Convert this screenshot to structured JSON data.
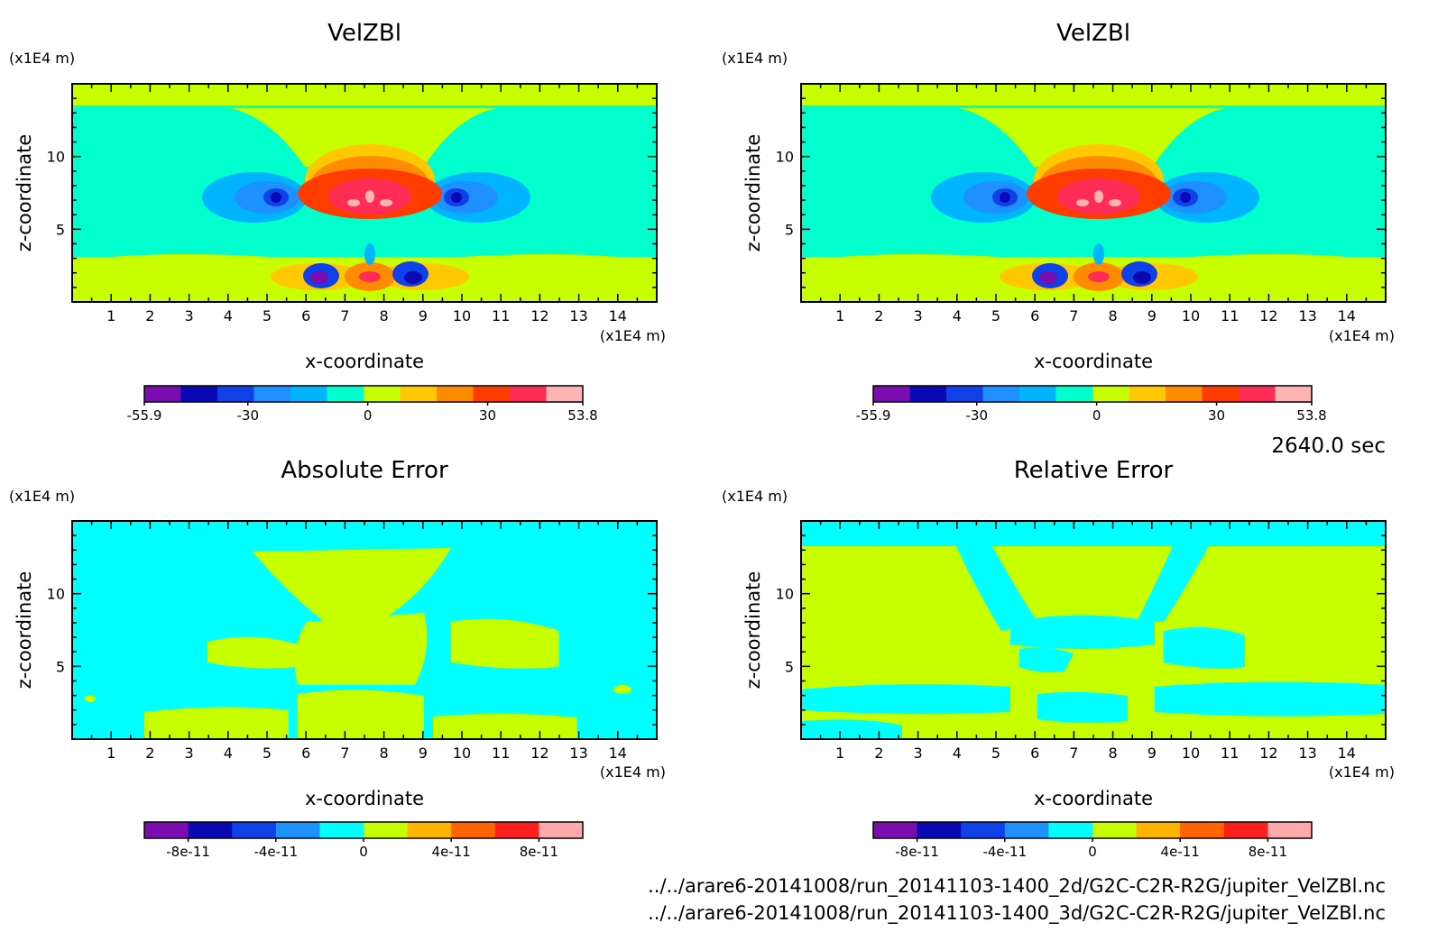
{
  "time_label": "2640.0 sec",
  "footer": {
    "line1": "../../arare6-20141008/run_20141103-1400_2d/G2C-C2R-R2G/jupiter_VelZBl.nc",
    "line2": "../../arare6-20141008/run_20141103-1400_3d/G2C-C2R-R2G/jupiter_VelZBl.nc"
  },
  "chart_data": [
    {
      "type": "heatmap",
      "title": "VelZBl",
      "xlabel": "x-coordinate",
      "ylabel": "z-coordinate",
      "x_unit": "(x1E4 m)",
      "y_unit": "(x1E4 m)",
      "xlim": [
        0,
        15
      ],
      "ylim": [
        0,
        15
      ],
      "xticks": [
        1,
        2,
        3,
        4,
        5,
        6,
        7,
        8,
        9,
        10,
        11,
        12,
        13,
        14
      ],
      "yticks": [
        5,
        10
      ],
      "colorbar": {
        "colors": [
          "#7b0cb0",
          "#0a0ab4",
          "#1040e8",
          "#1e90ff",
          "#00b4ff",
          "#00ffcc",
          "#c8ff00",
          "#ffc800",
          "#ff8c00",
          "#ff3c00",
          "#ff2d55",
          "#ffb4b4"
        ],
        "tick_labels": [
          "-55.9",
          "-30",
          "0",
          "30",
          "53.8"
        ],
        "tick_values": [
          -55.9,
          -30,
          0,
          30,
          53.8
        ],
        "range": [
          -55.9,
          53.8
        ]
      }
    },
    {
      "type": "heatmap",
      "title": "VelZBl",
      "xlabel": "x-coordinate",
      "ylabel": "z-coordinate",
      "x_unit": "(x1E4 m)",
      "y_unit": "(x1E4 m)",
      "xlim": [
        0,
        15
      ],
      "ylim": [
        0,
        15
      ],
      "xticks": [
        1,
        2,
        3,
        4,
        5,
        6,
        7,
        8,
        9,
        10,
        11,
        12,
        13,
        14
      ],
      "yticks": [
        5,
        10
      ],
      "colorbar": {
        "colors": [
          "#7b0cb0",
          "#0a0ab4",
          "#1040e8",
          "#1e90ff",
          "#00b4ff",
          "#00ffcc",
          "#c8ff00",
          "#ffc800",
          "#ff8c00",
          "#ff3c00",
          "#ff2d55",
          "#ffb4b4"
        ],
        "tick_labels": [
          "-55.9",
          "-30",
          "0",
          "30",
          "53.8"
        ],
        "tick_values": [
          -55.9,
          -30,
          0,
          30,
          53.8
        ],
        "range": [
          -55.9,
          53.8
        ]
      }
    },
    {
      "type": "heatmap",
      "title": "Absolute Error",
      "xlabel": "x-coordinate",
      "ylabel": "z-coordinate",
      "x_unit": "(x1E4 m)",
      "y_unit": "(x1E4 m)",
      "xlim": [
        0,
        15
      ],
      "ylim": [
        0,
        15
      ],
      "xticks": [
        1,
        2,
        3,
        4,
        5,
        6,
        7,
        8,
        9,
        10,
        11,
        12,
        13,
        14
      ],
      "yticks": [
        5,
        10
      ],
      "colorbar": {
        "colors": [
          "#7b0cb0",
          "#0a0ab4",
          "#1040e8",
          "#1e90ff",
          "#00ffff",
          "#c8ff00",
          "#ffb400",
          "#ff6400",
          "#ff1e1e",
          "#ffaaaa"
        ],
        "tick_labels": [
          "-8e-11",
          "-4e-11",
          "0",
          "4e-11",
          "8e-11"
        ],
        "tick_values": [
          -8e-11,
          -4e-11,
          0,
          4e-11,
          8e-11
        ],
        "range": [
          -1e-10,
          1e-10
        ]
      }
    },
    {
      "type": "heatmap",
      "title": "Relative Error",
      "xlabel": "x-coordinate",
      "ylabel": "z-coordinate",
      "x_unit": "(x1E4 m)",
      "y_unit": "(x1E4 m)",
      "xlim": [
        0,
        15
      ],
      "ylim": [
        0,
        15
      ],
      "xticks": [
        1,
        2,
        3,
        4,
        5,
        6,
        7,
        8,
        9,
        10,
        11,
        12,
        13,
        14
      ],
      "yticks": [
        5,
        10
      ],
      "colorbar": {
        "colors": [
          "#7b0cb0",
          "#0a0ab4",
          "#1040e8",
          "#1e90ff",
          "#00ffff",
          "#c8ff00",
          "#ffb400",
          "#ff6400",
          "#ff1e1e",
          "#ffaaaa"
        ],
        "tick_labels": [
          "-8e-11",
          "-4e-11",
          "0",
          "4e-11",
          "8e-11"
        ],
        "tick_values": [
          -8e-11,
          -4e-11,
          0,
          4e-11,
          8e-11
        ],
        "range": [
          -1e-10,
          1e-10
        ]
      }
    }
  ]
}
